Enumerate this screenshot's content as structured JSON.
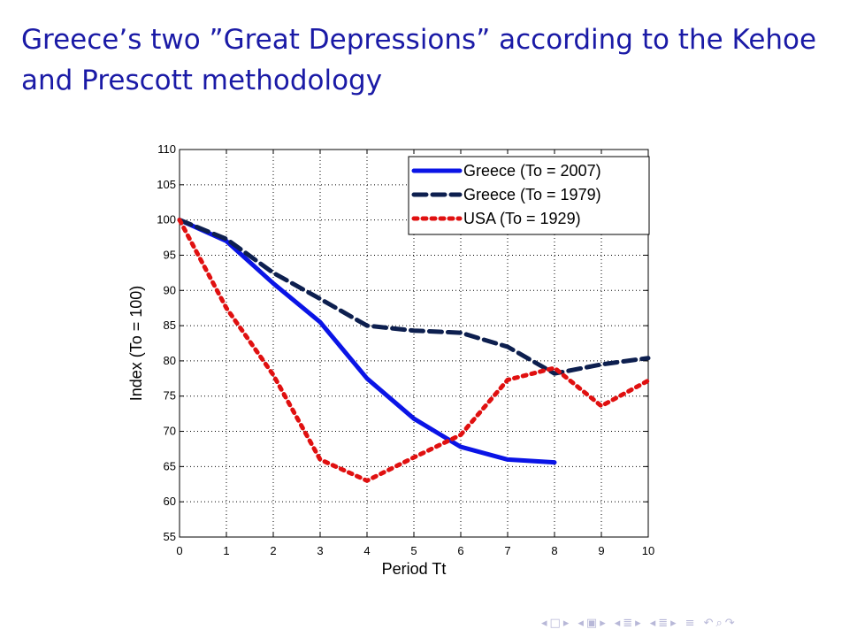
{
  "slide": {
    "title": "Greece’s two ”Great Depressions” according to the Kehoe and Prescott methodology"
  },
  "chart_data": {
    "type": "line",
    "xlabel": "Period Tt",
    "ylabel": "Index (To = 100)",
    "xlim": [
      0,
      10
    ],
    "ylim": [
      55,
      110
    ],
    "xticks": [
      0,
      1,
      2,
      3,
      4,
      5,
      6,
      7,
      8,
      9,
      10
    ],
    "yticks": [
      55,
      60,
      65,
      70,
      75,
      80,
      85,
      90,
      95,
      100,
      105,
      110
    ],
    "grid": true,
    "legend_position": "top-right",
    "series": [
      {
        "name": "Greece (To = 2007)",
        "color": "#0a14e6",
        "style": "solid",
        "x": [
          0,
          1,
          2,
          3,
          4,
          5,
          6,
          7,
          8
        ],
        "y": [
          100,
          97,
          91,
          85.5,
          77.5,
          71.8,
          67.8,
          66,
          65.6
        ]
      },
      {
        "name": "Greece (To = 1979)",
        "color": "#0d1f4f",
        "style": "dashed",
        "x": [
          0,
          1,
          2,
          3,
          4,
          5,
          6,
          7,
          8,
          9,
          10
        ],
        "y": [
          100,
          97.3,
          92.5,
          88.8,
          85,
          84.3,
          84,
          82,
          78.2,
          79.5,
          80.4
        ]
      },
      {
        "name": "USA (To = 1929)",
        "color": "#e01010",
        "style": "dotted",
        "x": [
          0,
          1,
          2,
          3,
          4,
          5,
          6,
          7,
          8,
          9,
          10
        ],
        "y": [
          100,
          87.5,
          78,
          66,
          63,
          66.3,
          69.5,
          77.3,
          79,
          73.6,
          77.2
        ]
      }
    ]
  },
  "navigation": {
    "icons": [
      "frame-prev-icon",
      "frame-next-icon",
      "subsection-prev-icon",
      "subsection-next-icon",
      "section-prev-icon",
      "section-next-icon",
      "slide-prev-icon",
      "slide-next-icon",
      "align-icon",
      "search-icon"
    ]
  }
}
